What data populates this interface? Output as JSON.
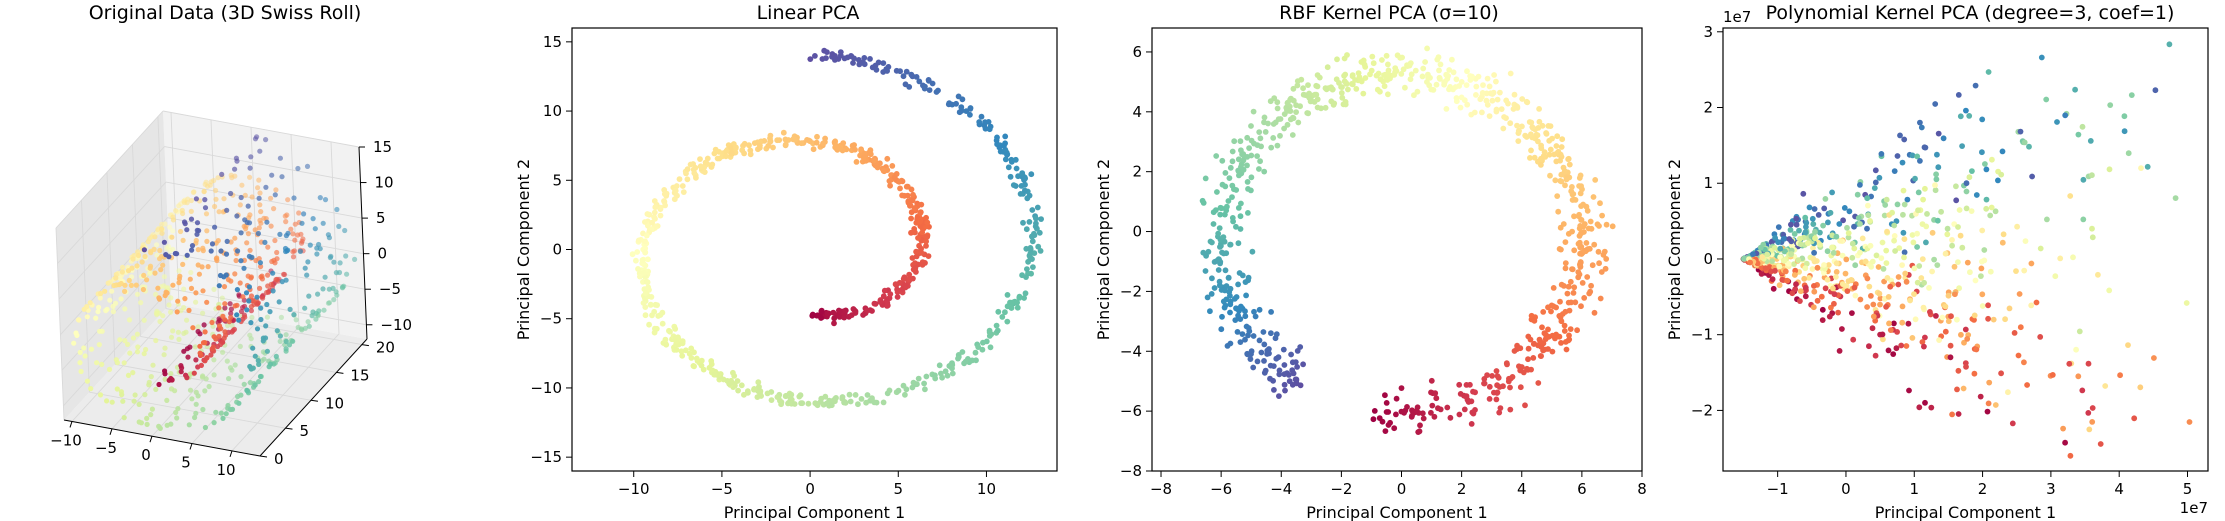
{
  "colors": {
    "spectral": [
      "#9e0142",
      "#d53e4f",
      "#f46d43",
      "#fdae61",
      "#fee08b",
      "#ffffbf",
      "#e6f598",
      "#abdda4",
      "#66c2a5",
      "#3288bd",
      "#5e4fa2"
    ],
    "pane_3d": "#f2f2f2",
    "grid": "#d9d9d9",
    "axes": "#000000"
  },
  "chart_data": [
    {
      "type": "scatter3d",
      "title": "Original Data (3D Swiss Roll)",
      "xlabel": "",
      "ylabel": "",
      "zlabel": "",
      "xlim": [
        -11,
        13.5
      ],
      "ylim": [
        0,
        21
      ],
      "zlim": [
        -12,
        15
      ],
      "xticks": [
        -10,
        -5,
        0,
        5,
        10
      ],
      "yticks": [
        0,
        5,
        10,
        15,
        20
      ],
      "zticks": [
        -10,
        -5,
        0,
        5,
        10,
        15
      ],
      "colormap": "Spectral",
      "n_points": 800,
      "grid": true,
      "t_range": [
        4.71,
        14.14
      ]
    },
    {
      "type": "scatter",
      "title": "Linear PCA",
      "xlabel": "Principal Component 1",
      "ylabel": "Principal Component 2",
      "xlim": [
        -13.5,
        14
      ],
      "ylim": [
        -16,
        16
      ],
      "xticks": [
        -10,
        -5,
        0,
        5,
        10
      ],
      "yticks": [
        -15,
        -10,
        -5,
        0,
        5,
        10,
        15
      ],
      "colormap": "Spectral",
      "n_points": 800,
      "grid": false
    },
    {
      "type": "scatter",
      "title": "RBF Kernel PCA (σ=10)",
      "xlabel": "Principal Component 1",
      "ylabel": "Principal Component 2",
      "xlim": [
        -8.3,
        8
      ],
      "ylim": [
        -8,
        6.8
      ],
      "xticks": [
        -8,
        -6,
        -4,
        -2,
        0,
        2,
        4,
        6,
        8
      ],
      "yticks": [
        -8,
        -6,
        -4,
        -2,
        0,
        2,
        4,
        6
      ],
      "colormap": "Spectral",
      "n_points": 800,
      "grid": false
    },
    {
      "type": "scatter",
      "title": "Polynomial Kernel PCA (degree=3, coef=1)",
      "xlabel": "Principal Component 1",
      "ylabel": "Principal Component 2",
      "xlim": [
        -1.8,
        5.3
      ],
      "ylim": [
        -2.8,
        3.05
      ],
      "x_offset_label": "1e7",
      "y_offset_label": "1e7",
      "xticks": [
        -1,
        0,
        1,
        2,
        3,
        4,
        5
      ],
      "yticks": [
        -2,
        -1,
        0,
        1,
        2,
        3
      ],
      "colormap": "Spectral",
      "n_points": 800,
      "grid": false
    }
  ]
}
